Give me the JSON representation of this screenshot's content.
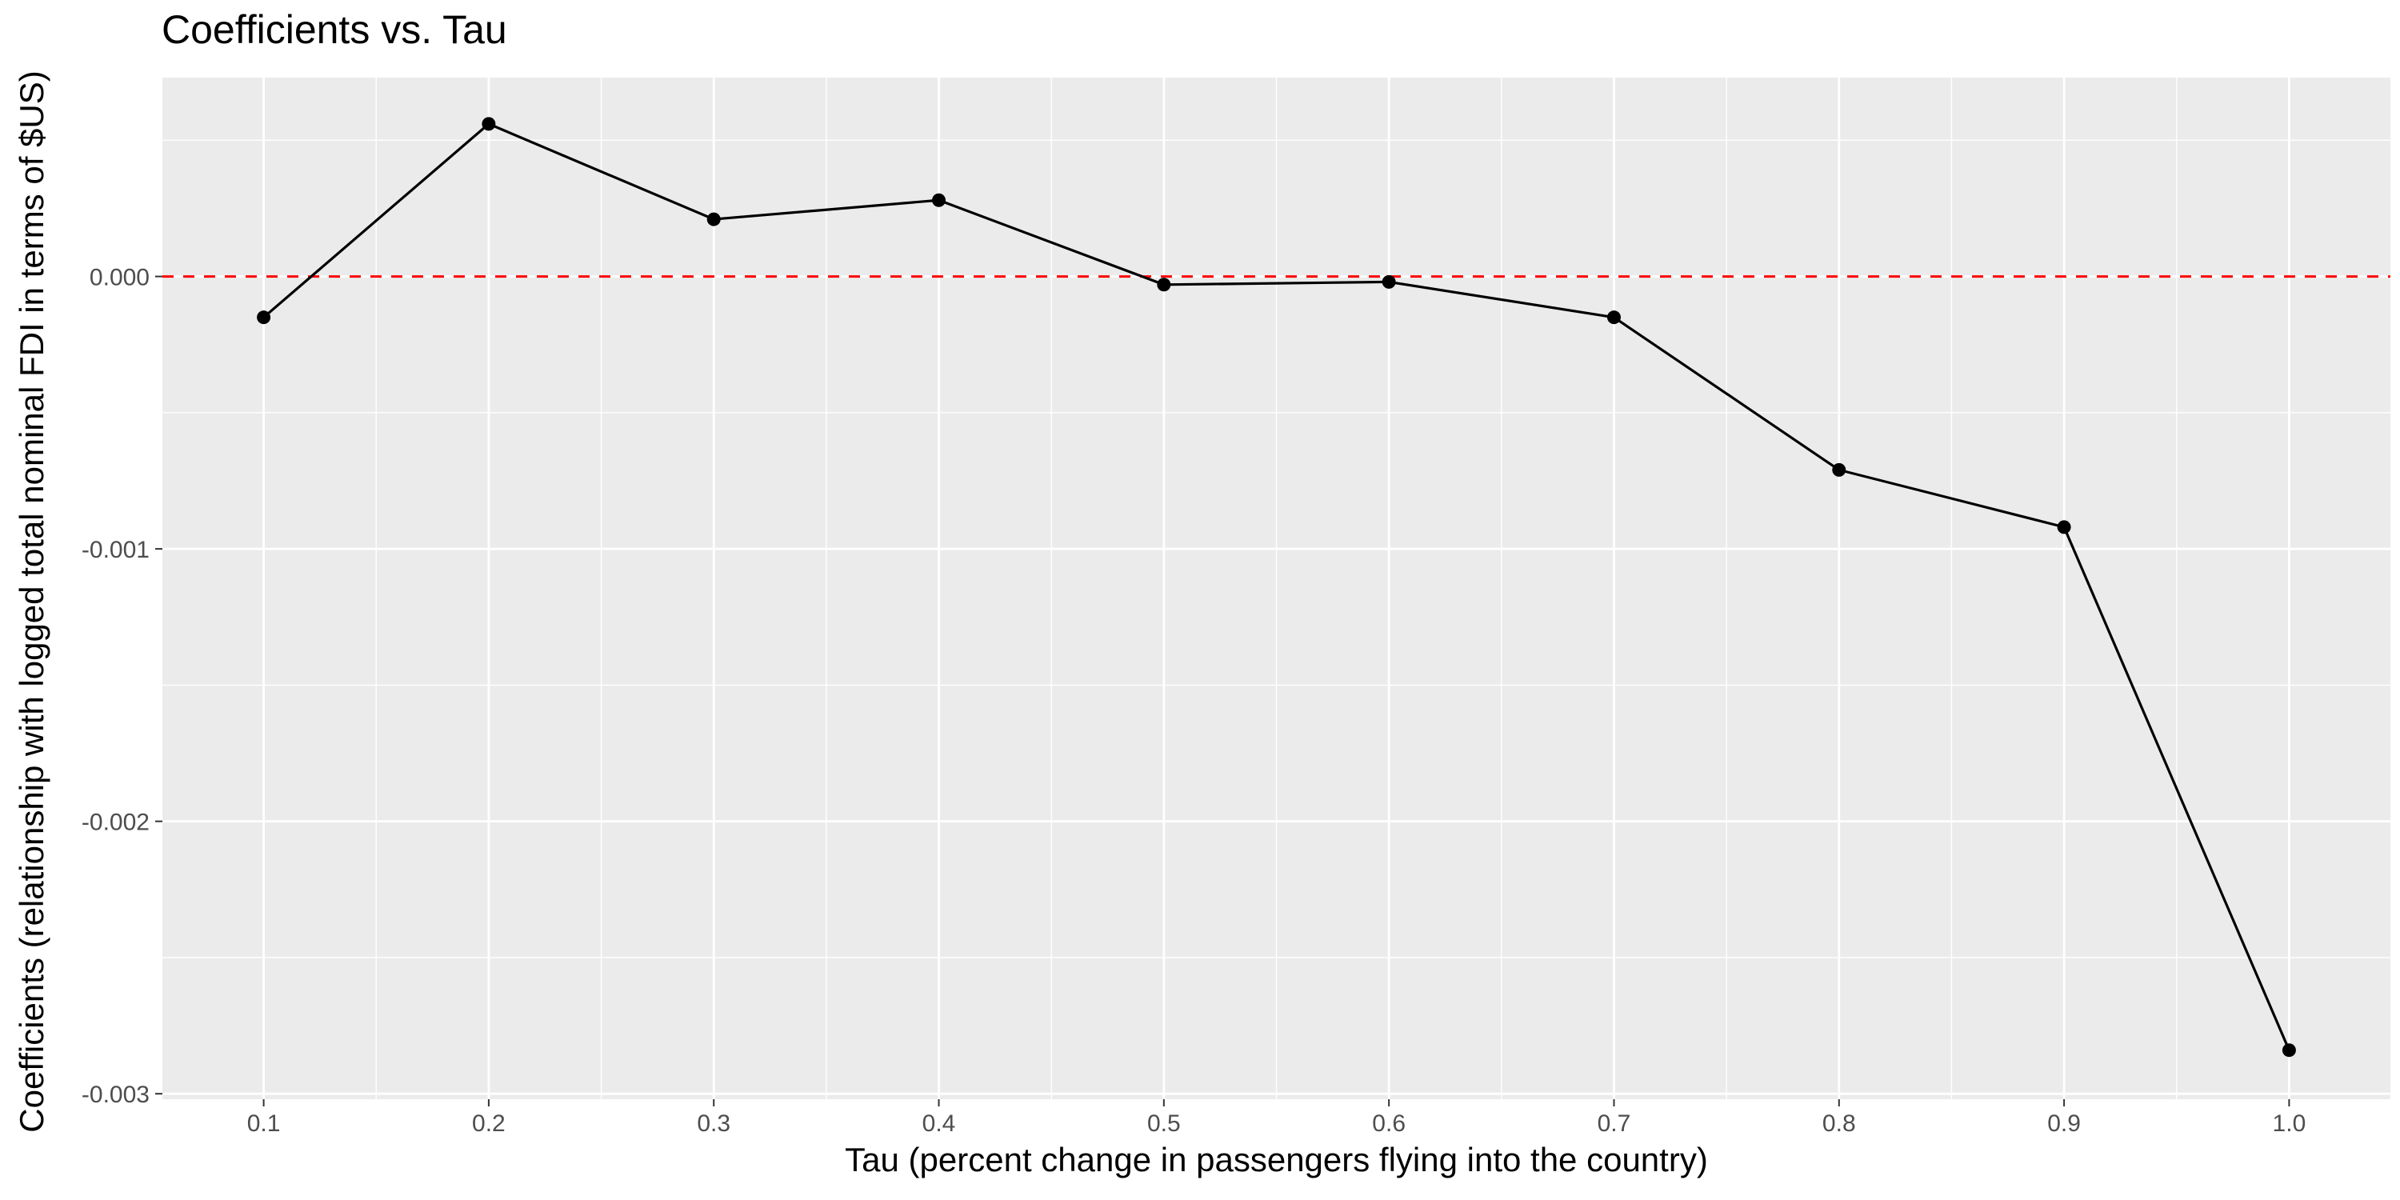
{
  "chart_data": {
    "type": "line",
    "title": "Coefficients vs. Tau",
    "xlabel": "Tau (percent change in passengers flying into the country)",
    "ylabel": "Coefficients (relationship with logged total nominal FDI in terms of $US)",
    "x": [
      0.1,
      0.2,
      0.3,
      0.4,
      0.5,
      0.6,
      0.7,
      0.8,
      0.9,
      1.0
    ],
    "series": [
      {
        "values": [
          -0.00015,
          0.00056,
          0.00021,
          0.00028,
          -3e-05,
          -2e-05,
          -0.00015,
          -0.00071,
          -0.00092,
          -0.00284
        ]
      }
    ],
    "xlim": [
      0.055,
      1.045
    ],
    "ylim": [
      -0.00302,
      0.00073
    ],
    "x_ticks": [
      0.1,
      0.2,
      0.3,
      0.4,
      0.5,
      0.6,
      0.7,
      0.8,
      0.9,
      1.0
    ],
    "x_tick_labels": [
      "0.1",
      "0.2",
      "0.3",
      "0.4",
      "0.5",
      "0.6",
      "0.7",
      "0.8",
      "0.9",
      "1.0"
    ],
    "y_ticks": [
      0.0,
      -0.001,
      -0.002,
      -0.003
    ],
    "y_tick_labels": [
      "0.000",
      "-0.001",
      "-0.002",
      "-0.003"
    ],
    "reference_line": {
      "y": 0,
      "style": "dashed",
      "color": "#ff0000"
    },
    "grid": true,
    "colors": {
      "panel_background": "#ebebeb",
      "grid": "#ffffff",
      "line": "#000000",
      "points": "#000000",
      "tick_labels": "#4d4d4d",
      "tick_marks": "#333333"
    }
  }
}
